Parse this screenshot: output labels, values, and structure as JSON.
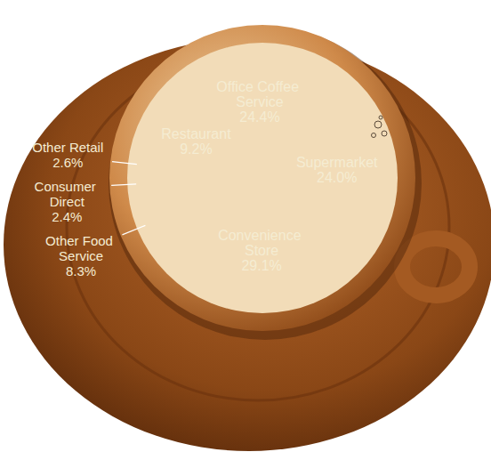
{
  "chart_data": {
    "type": "pie",
    "categories": [
      "Office Coffee Service",
      "Supermarket",
      "Convenience Store",
      "Other Food Service",
      "Consumer Direct",
      "Other Retail",
      "Restaurant"
    ],
    "values": [
      24.4,
      24.0,
      29.1,
      8.3,
      2.4,
      2.6,
      9.2
    ],
    "value_labels": [
      "24.4%",
      "24.0%",
      "29.1%",
      "8.3%",
      "2.4%",
      "2.6%",
      "9.2%"
    ],
    "color": "#000000",
    "data_labels": true
  }
}
